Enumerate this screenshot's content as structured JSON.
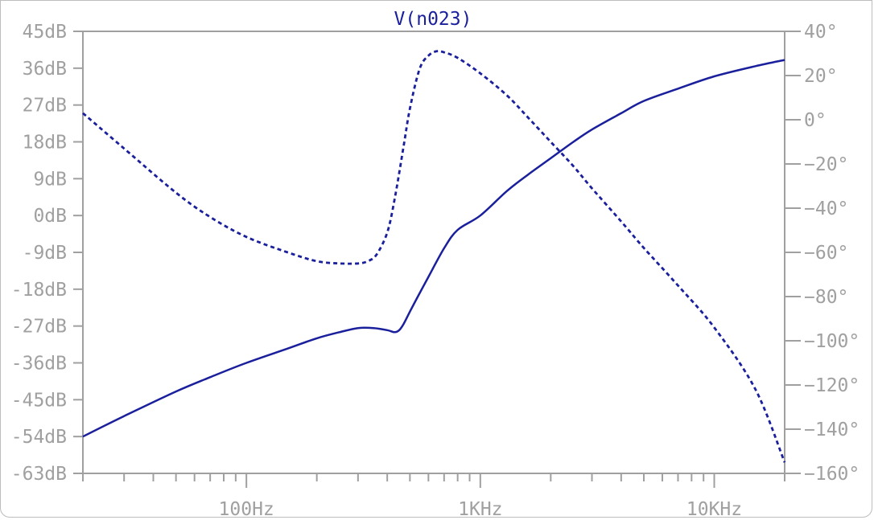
{
  "chart_data": {
    "type": "line",
    "title": "V(n023)",
    "xlabel": "",
    "ylabel": "",
    "y2label": "",
    "xscale": "log",
    "xlim": [
      20,
      20000
    ],
    "ylim": [
      -63,
      45
    ],
    "y2lim": [
      -160,
      40
    ],
    "grid": false,
    "x_ticks": [
      {
        "label": "100Hz",
        "value": 100
      },
      {
        "label": "1KHz",
        "value": 1000
      },
      {
        "label": "10KHz",
        "value": 10000
      }
    ],
    "y_ticks": [
      "45dB",
      "36dB",
      "27dB",
      "18dB",
      "9dB",
      "0dB",
      "-9dB",
      "-18dB",
      "-27dB",
      "-36dB",
      "-45dB",
      "-54dB",
      "-63dB"
    ],
    "y_tick_values": [
      45,
      36,
      27,
      18,
      9,
      0,
      -9,
      -18,
      -27,
      -36,
      -45,
      -54,
      -63
    ],
    "y2_ticks": [
      "40°",
      "20°",
      "0°",
      "−20°",
      "−40°",
      "−60°",
      "−80°",
      "−100°",
      "−120°",
      "−140°",
      "−160°"
    ],
    "y2_tick_values": [
      40,
      20,
      0,
      -20,
      -40,
      -60,
      -80,
      -100,
      -120,
      -140,
      -160
    ],
    "colors": {
      "trace": "#1a1f9c",
      "axis": "#a0a0a0"
    },
    "series": [
      {
        "axis": "left",
        "style": "solid",
        "x": [
          20,
          30,
          50,
          70,
          100,
          150,
          200,
          250,
          300,
          350,
          400,
          430,
          450,
          470,
          500,
          550,
          600,
          700,
          800,
          1000,
          1300,
          1600,
          2000,
          2500,
          3000,
          4000,
          5000,
          7000,
          10000,
          15000,
          20000
        ],
        "values": [
          -54,
          -49,
          -43,
          -39.5,
          -36,
          -32.5,
          -30,
          -28.5,
          -27.5,
          -27.5,
          -28,
          -28.5,
          -28,
          -26.5,
          -23.5,
          -19,
          -15,
          -8,
          -3.5,
          0,
          6,
          10,
          14,
          18,
          21,
          25,
          28,
          31,
          34,
          36.5,
          38
        ]
      },
      {
        "axis": "right",
        "style": "dashed",
        "x": [
          20,
          30,
          50,
          70,
          100,
          150,
          200,
          250,
          300,
          330,
          360,
          400,
          430,
          470,
          500,
          550,
          600,
          650,
          700,
          800,
          1000,
          1300,
          1600,
          2000,
          2500,
          3000,
          4000,
          5000,
          7000,
          10000,
          15000,
          20000
        ],
        "values": [
          3,
          -13,
          -33,
          -44,
          -53,
          -60,
          -64,
          -65,
          -65,
          -64,
          -61,
          -51,
          -36,
          -12,
          5,
          23,
          29,
          31,
          30.5,
          28,
          21,
          11,
          1,
          -10,
          -21,
          -31,
          -46,
          -58,
          -75,
          -94,
          -122,
          -155
        ]
      }
    ]
  }
}
